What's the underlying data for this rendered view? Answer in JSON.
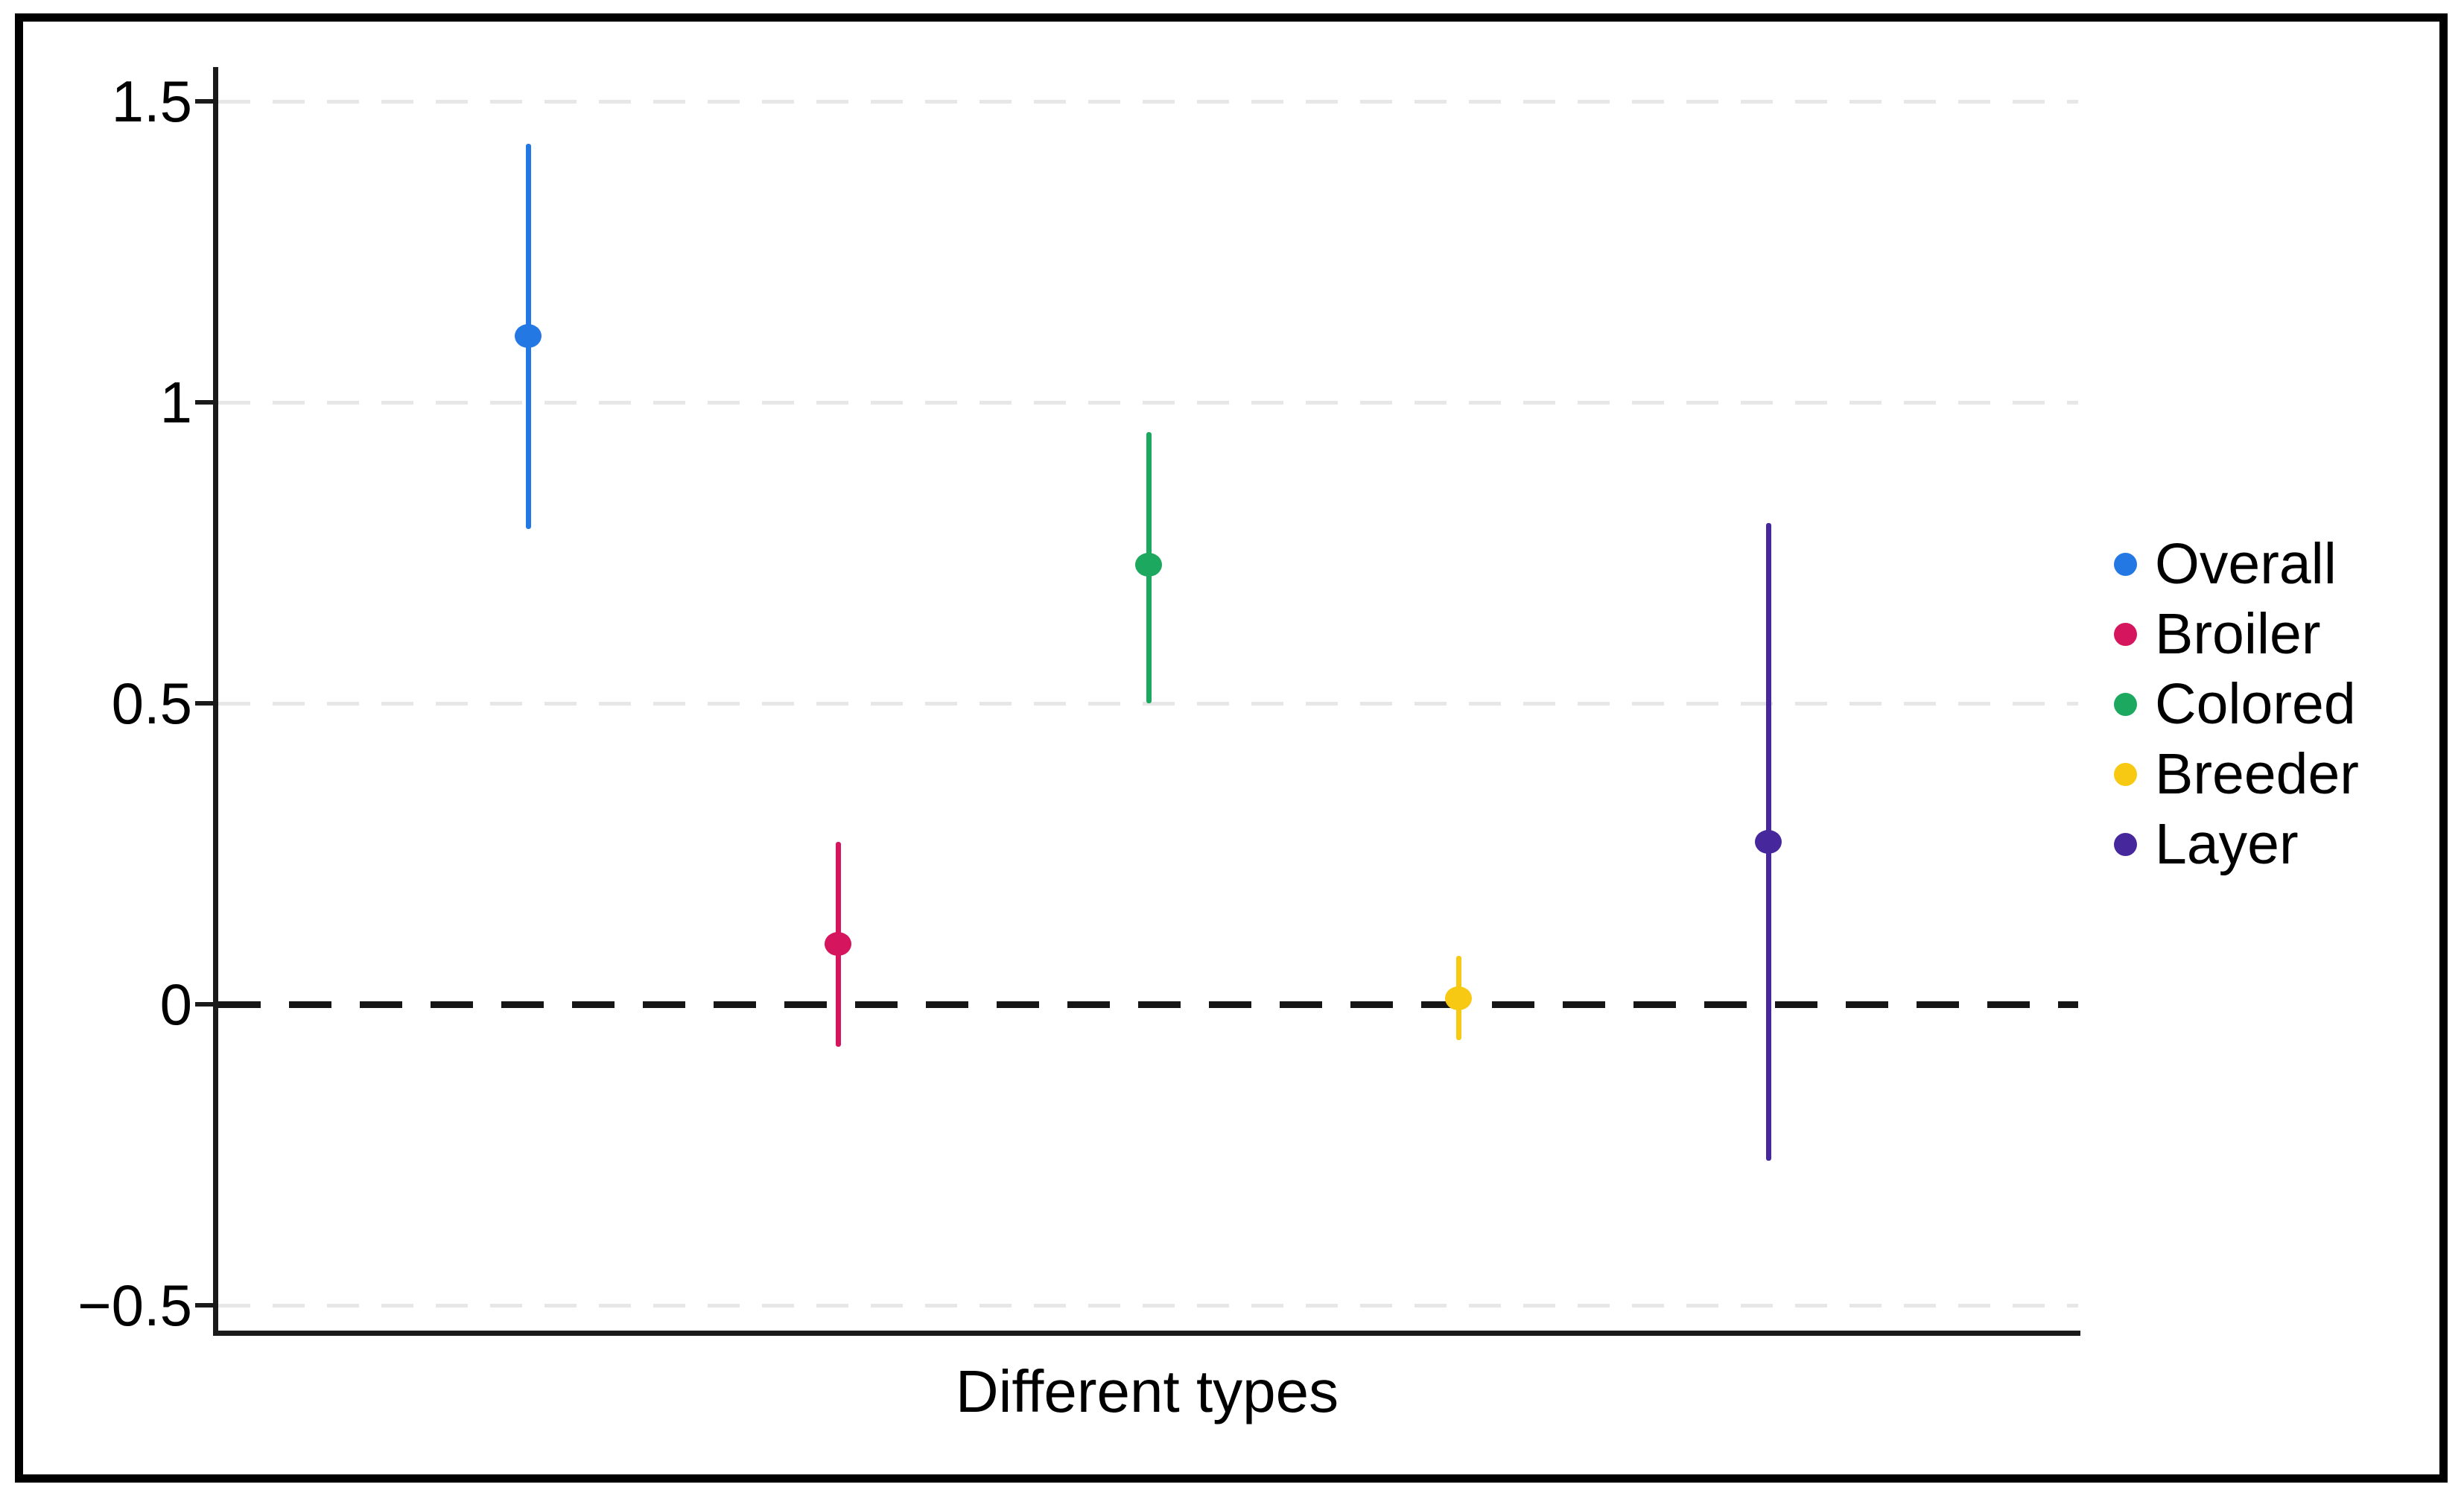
{
  "figure": {
    "background": "#ffffff",
    "border_color": "#000000",
    "axis_color": "#1a1a1a",
    "gridline_color": "#e7e7e7"
  },
  "chart_data": {
    "type": "scatter",
    "subtype": "point-estimates-with-error-bars",
    "title": "",
    "xlabel": "Different types",
    "ylabel": "",
    "ylim": [
      -0.55,
      1.55
    ],
    "grid": "horizontal dashed gridlines at each y tick",
    "legend_position": "right",
    "reference_line": {
      "y": 0,
      "style": "dashed",
      "color": "#161616"
    },
    "yticks": [
      {
        "value": 1.5,
        "label": "1.5"
      },
      {
        "value": 1,
        "label": "1"
      },
      {
        "value": 0.5,
        "label": "0.5"
      },
      {
        "value": 0,
        "label": "0"
      },
      {
        "value": -0.5,
        "label": "−0.5"
      }
    ],
    "series": [
      {
        "name": "Overall",
        "x_index": 1,
        "estimate": 1.11,
        "ci_low": 0.79,
        "ci_high": 1.43,
        "color": "#2478E4"
      },
      {
        "name": "Broiler",
        "x_index": 2,
        "estimate": 0.1,
        "ci_low": -0.07,
        "ci_high": 0.27,
        "color": "#D5155E"
      },
      {
        "name": "Colored",
        "x_index": 3,
        "estimate": 0.73,
        "ci_low": 0.5,
        "ci_high": 0.95,
        "color": "#1CA85F"
      },
      {
        "name": "Breeder",
        "x_index": 4,
        "estimate": 0.01,
        "ci_low": -0.06,
        "ci_high": 0.08,
        "color": "#F8C913"
      },
      {
        "name": "Layer",
        "x_index": 5,
        "estimate": 0.27,
        "ci_low": -0.26,
        "ci_high": 0.8,
        "color": "#46289C"
      }
    ],
    "legend": [
      "Overall",
      "Broiler",
      "Colored",
      "Breeder",
      "Layer"
    ]
  }
}
